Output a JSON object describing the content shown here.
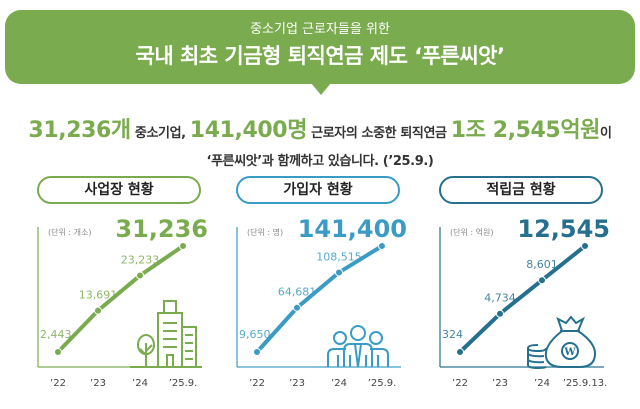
{
  "header": {
    "subtitle": "중소기업 근로자들을 위한",
    "title": "국내 최초 기금형 퇴직연금 제도 ‘푸른씨앗’"
  },
  "summary": {
    "n1": "31,236개",
    "t1": " 중소기업, ",
    "n2": "141,400명",
    "t2": " 근로자의 소중한 퇴직연금 ",
    "n3": "1조 2,545억원",
    "t3": "이",
    "line2": "‘푸른씨앗’과 함께하고 있습니다. (’25.9.)"
  },
  "colors": {
    "green": "#7aab4e",
    "blue": "#3a9cc4",
    "teal": "#26708f"
  },
  "chart_data": [
    {
      "type": "line",
      "title": "사업장 현황",
      "unit": "(단위 : 개소)",
      "categories": [
        "’22",
        "’23",
        "’24",
        "’25.9."
      ],
      "values": [
        2443,
        13691,
        23233,
        31236
      ],
      "labels": [
        "2,443",
        "13,691",
        "23,233"
      ],
      "highlight": "31,236",
      "color": "#7aab4e",
      "icon": "buildings-tree-icon"
    },
    {
      "type": "line",
      "title": "가입자 현황",
      "unit": "(단위 : 명)",
      "categories": [
        "’22",
        "’23",
        "’24",
        "’25.9."
      ],
      "values": [
        9650,
        64681,
        108515,
        141400
      ],
      "labels": [
        "9,650",
        "64,681",
        "108,515"
      ],
      "highlight": "141,400",
      "color": "#3a9cc4",
      "icon": "people-icon"
    },
    {
      "type": "line",
      "title": "적립금 현황",
      "unit": "(단위 : 억원)",
      "categories": [
        "’22",
        "’23",
        "’24",
        "’25.9.13."
      ],
      "values": [
        324,
        4734,
        8601,
        12545
      ],
      "labels": [
        "324",
        "4,734",
        "8,601"
      ],
      "highlight": "12,545",
      "color": "#26708f",
      "icon": "money-bag-icon"
    }
  ]
}
